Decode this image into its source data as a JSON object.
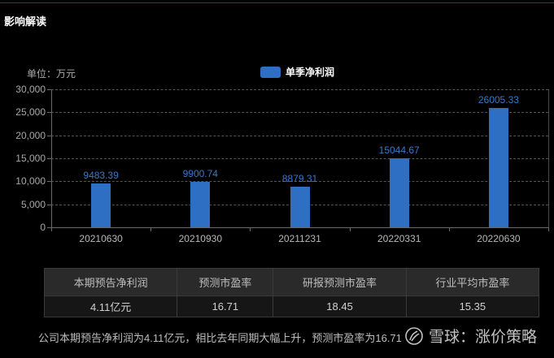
{
  "header": {
    "title": "影响解读"
  },
  "colors": {
    "bar": "#2f6fc3",
    "label": "#3a78c9",
    "top_line": "#8b1a1a",
    "background": "#000000"
  },
  "chart_data": {
    "type": "bar",
    "title": "",
    "unit_label": "单位：万元",
    "legend": [
      "单季净利润"
    ],
    "legend_position": "top-center",
    "categories": [
      "20210630",
      "20210930",
      "20211231",
      "20220331",
      "20220630"
    ],
    "series": [
      {
        "name": "单季净利润",
        "values": [
          9483.39,
          9900.74,
          8879.31,
          15044.67,
          26005.33
        ]
      }
    ],
    "value_labels": [
      "9483.39",
      "9900.74",
      "8879.31",
      "15044.67",
      "26005.33"
    ],
    "yticks": [
      "0",
      "5,000",
      "10,000",
      "15,000",
      "20,000",
      "25,000",
      "30,000"
    ],
    "ylim": [
      0,
      30000
    ],
    "xlabel": "",
    "ylabel": "万元",
    "grid": true
  },
  "summary_table": {
    "headers": [
      "本期预告净利润",
      "预测市盈率",
      "研报预测市盈率",
      "行业平均市盈率"
    ],
    "values": [
      "4.11亿元",
      "16.71",
      "18.45",
      "15.35"
    ]
  },
  "conclusion": "公司本期预告净利润为4.11亿元，相比去年同期大幅上升，预测市盈率为16.71",
  "watermark": {
    "text": "雪球：涨价策略"
  }
}
